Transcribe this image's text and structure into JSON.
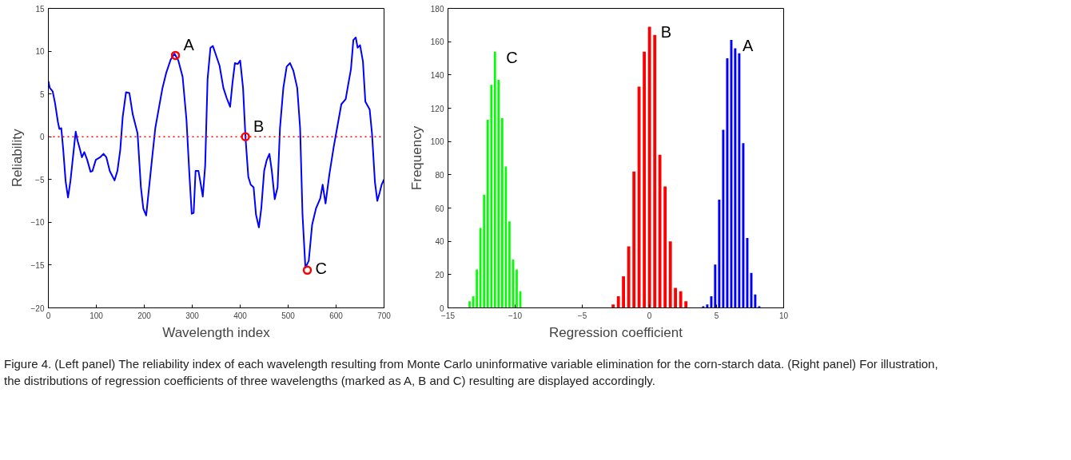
{
  "chart_data": [
    {
      "type": "line",
      "xlabel": "Wavelength index",
      "ylabel": "Reliability",
      "xlim": [
        0,
        700
      ],
      "ylim": [
        -20,
        15
      ],
      "xticks": [
        0,
        100,
        200,
        300,
        400,
        500,
        600,
        700
      ],
      "yticks": [
        -20,
        -15,
        -10,
        -5,
        0,
        5,
        10,
        15
      ],
      "grid": false,
      "line_style": "solid",
      "x": [
        0,
        3,
        9,
        14,
        20,
        23,
        27,
        31,
        36,
        41,
        46,
        53,
        57,
        61,
        66,
        70,
        75,
        81,
        88,
        92,
        99,
        108,
        115,
        121,
        128,
        138,
        144,
        150,
        155,
        162,
        169,
        176,
        186,
        193,
        198,
        204,
        209,
        216,
        223,
        230,
        238,
        246,
        255,
        263,
        271,
        280,
        288,
        294,
        299,
        303,
        307,
        313,
        318,
        322,
        327,
        332,
        338,
        343,
        348,
        357,
        365,
        372,
        379,
        384,
        389,
        395,
        400,
        406,
        411,
        417,
        422,
        428,
        433,
        439,
        444,
        450,
        455,
        461,
        466,
        472,
        478,
        483,
        490,
        497,
        504,
        511,
        519,
        525,
        530,
        536,
        543,
        550,
        558,
        567,
        572,
        578,
        586,
        595,
        603,
        611,
        620,
        625,
        631,
        636,
        641,
        645,
        650,
        656,
        661,
        670,
        675,
        681,
        686,
        691,
        695,
        700
      ],
      "series": [
        {
          "color": "#0000ff",
          "values": [
            6.5,
            5.7,
            5.3,
            3.9,
            1.7,
            0.9,
            1.0,
            -1.5,
            -5.2,
            -7.1,
            -5.2,
            -1.5,
            0.6,
            -0.5,
            -1.5,
            -2.4,
            -1.8,
            -2.7,
            -4.1,
            -4.0,
            -2.7,
            -2.4,
            -2.0,
            -2.4,
            -4.0,
            -5.1,
            -4.0,
            -1.5,
            2.3,
            5.2,
            5.1,
            2.6,
            0.4,
            -5.9,
            -8.4,
            -9.2,
            -6.5,
            -2.7,
            1.0,
            3.2,
            5.7,
            7.5,
            9.0,
            9.7,
            8.9,
            7.0,
            2.0,
            -4.3,
            -9.0,
            -8.9,
            -4.0,
            -4.0,
            -5.6,
            -7.0,
            -3.4,
            6.7,
            10.4,
            10.6,
            9.8,
            8.3,
            5.7,
            4.5,
            3.5,
            6.3,
            8.6,
            8.5,
            8.9,
            5.7,
            0.0,
            -4.7,
            -5.6,
            -5.9,
            -9.1,
            -10.6,
            -8.4,
            -4.0,
            -2.8,
            -2.0,
            -4.0,
            -7.3,
            -5.9,
            1.0,
            5.7,
            8.2,
            8.6,
            7.7,
            5.7,
            1.0,
            -9.1,
            -15.3,
            -14.5,
            -10.3,
            -8.4,
            -7.2,
            -5.6,
            -7.8,
            -4.4,
            -1.2,
            1.3,
            3.8,
            4.4,
            6.0,
            7.9,
            11.3,
            11.6,
            10.4,
            10.7,
            8.8,
            4.1,
            3.2,
            0.3,
            -5.3,
            -7.5,
            -6.5,
            -5.6,
            -5.0
          ]
        },
        {
          "type": "scatter",
          "marker": "circle",
          "color": "#ff0000",
          "x": [
            265,
            411,
            540
          ],
          "values": [
            9.5,
            0,
            -15.6
          ]
        }
      ],
      "ref_lines": [
        {
          "axis": "y",
          "value": 0,
          "color": "#ff0000",
          "line_style": "dotted"
        }
      ],
      "annotations": [
        {
          "text": "A",
          "x": 265,
          "y": 9.5
        },
        {
          "text": "B",
          "x": 411,
          "y": 0
        },
        {
          "text": "C",
          "x": 540,
          "y": -15.6
        }
      ]
    },
    {
      "type": "bar",
      "xlabel": "Regression coefficient",
      "ylabel": "Frequency",
      "xlim": [
        -15,
        10
      ],
      "ylim": [
        0,
        180
      ],
      "xticks": [
        -15,
        -10,
        -5,
        0,
        5,
        10
      ],
      "yticks": [
        0,
        20,
        40,
        60,
        80,
        100,
        120,
        140,
        160,
        180
      ],
      "grid": false,
      "series": [
        {
          "name": "C",
          "color": "#00ff00",
          "x": [
            -13.39,
            -13.12,
            -12.85,
            -12.58,
            -12.31,
            -12.04,
            -11.77,
            -11.5,
            -11.23,
            -10.96,
            -10.69,
            -10.42,
            -10.15,
            -9.88,
            -9.61
          ],
          "values": [
            4,
            7,
            23,
            48,
            68,
            113,
            134,
            154,
            137,
            114,
            85,
            52,
            29,
            23,
            10
          ]
        },
        {
          "name": "B",
          "color": "#ff0000",
          "x": [
            -2.7,
            -2.31,
            -1.93,
            -1.54,
            -1.15,
            -0.77,
            -0.38,
            0.01,
            0.4,
            0.78,
            1.17,
            1.56,
            1.94,
            2.33,
            2.72
          ],
          "values": [
            2,
            7,
            19,
            37,
            82,
            133,
            154,
            169,
            164,
            92,
            73,
            40,
            12,
            10,
            4
          ]
        },
        {
          "name": "A",
          "color": "#0000ff",
          "x": [
            4.01,
            4.31,
            4.61,
            4.9,
            5.2,
            5.5,
            5.8,
            6.1,
            6.39,
            6.69,
            6.99,
            7.29,
            7.59,
            7.88,
            8.18
          ],
          "values": [
            1,
            2,
            7,
            26,
            65,
            107,
            150,
            161,
            156,
            153,
            99,
            42,
            21,
            8,
            1
          ]
        }
      ],
      "annotations": [
        "Figure 4.  (Left panel) The reliability index of each wavelength resulting from Monte Carlo uninformative variable elimination for the corn-starch data. (Right panel) For illustration, the distributions of regression coefficients of three wavelengths (marked as A, B and C) resulting are displayed accordingly."
      ]
    }
  ]
}
